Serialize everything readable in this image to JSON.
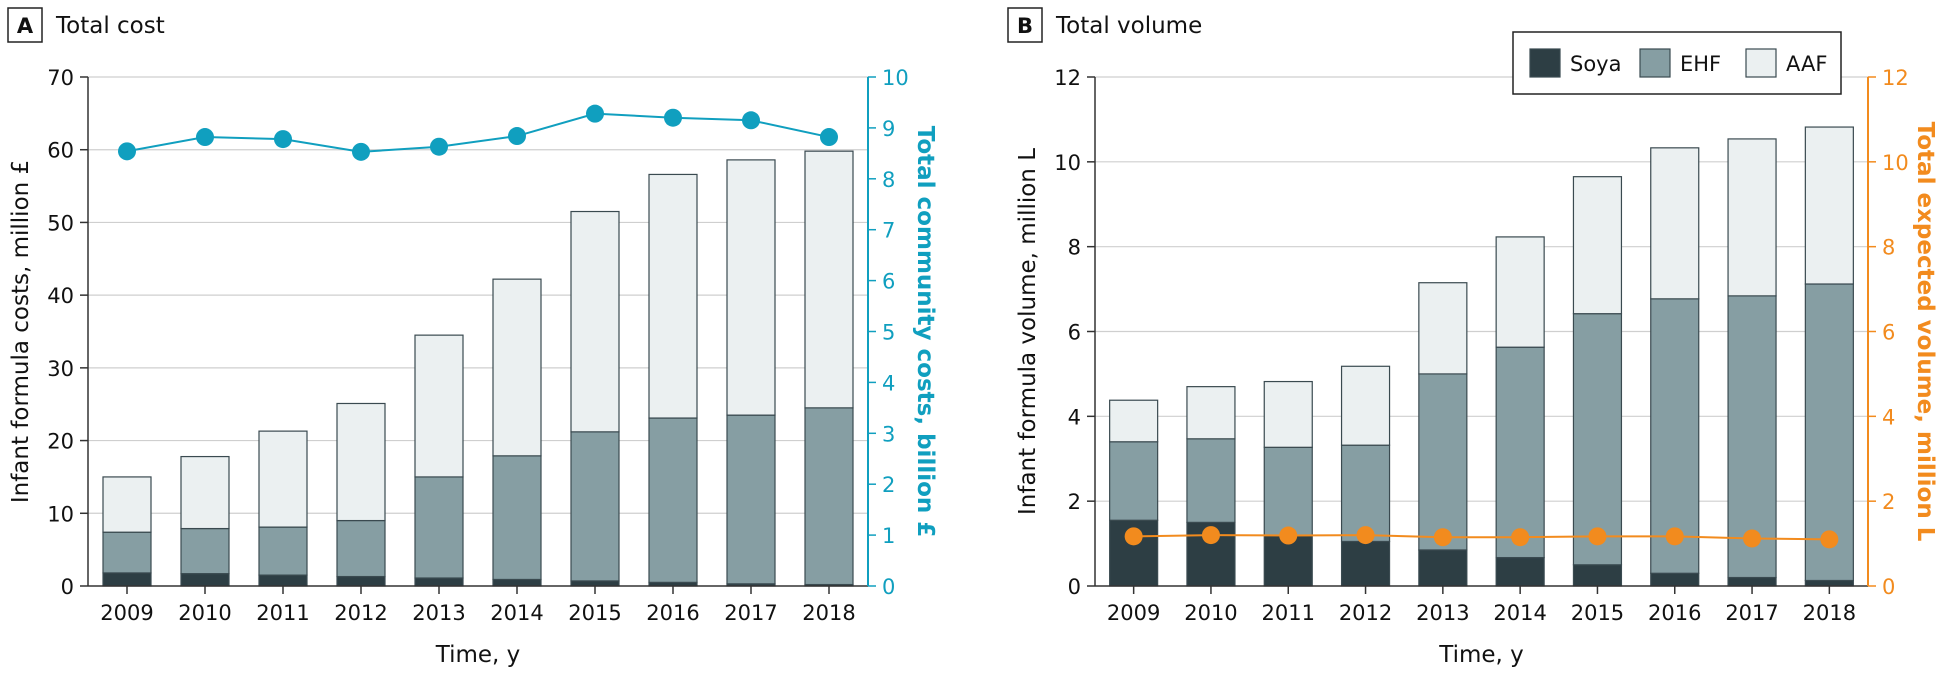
{
  "colors": {
    "soya": "#2d3e44",
    "ehf": "#869ea3",
    "aaf": "#ebf0f1",
    "bar_stroke": "#3a4a50",
    "community": "#109fbf",
    "expected": "#f28b1e",
    "grid": "#cfcfcf",
    "axis": "#333333"
  },
  "legend": {
    "soya": "Soya",
    "ehf": "EHF",
    "aaf": "AAF"
  },
  "chart_data": [
    {
      "panel": "A",
      "title": "Total cost",
      "type": "bar",
      "stacked": true,
      "xlabel": "Time, y",
      "ylabel": "Infant formula costs, million £",
      "y2label": "Total community costs, billion £",
      "ylim": [
        0,
        70
      ],
      "yticks": [
        0,
        10,
        20,
        30,
        40,
        50,
        60,
        70
      ],
      "y2lim": [
        0,
        10
      ],
      "y2ticks": [
        0,
        1,
        2,
        3,
        4,
        5,
        6,
        7,
        8,
        9,
        10
      ],
      "grid": true,
      "categories": [
        "2009",
        "2010",
        "2011",
        "2012",
        "2013",
        "2014",
        "2015",
        "2016",
        "2017",
        "2018"
      ],
      "series": [
        {
          "name": "Soya",
          "values": [
            1.8,
            1.7,
            1.5,
            1.3,
            1.1,
            0.9,
            0.7,
            0.5,
            0.3,
            0.2
          ]
        },
        {
          "name": "EHF",
          "values": [
            5.6,
            6.2,
            6.6,
            7.7,
            13.9,
            17.0,
            20.5,
            22.6,
            23.2,
            24.3
          ]
        },
        {
          "name": "AAF",
          "values": [
            7.6,
            9.9,
            13.2,
            16.1,
            19.5,
            24.3,
            30.3,
            33.5,
            35.1,
            35.3
          ]
        }
      ],
      "line": {
        "axis": "right",
        "values": [
          8.54,
          8.82,
          8.78,
          8.53,
          8.63,
          8.84,
          9.28,
          9.2,
          9.15,
          8.82
        ]
      }
    },
    {
      "panel": "B",
      "title": "Total volume",
      "type": "bar",
      "stacked": true,
      "xlabel": "Time, y",
      "ylabel": "Infant formula volume, million L",
      "y2label": "Total expected volume, million L",
      "ylim": [
        0,
        12
      ],
      "yticks": [
        0,
        2,
        4,
        6,
        8,
        10,
        12
      ],
      "y2lim": [
        0,
        12
      ],
      "y2ticks": [
        0,
        2,
        4,
        6,
        8,
        10,
        12
      ],
      "grid": true,
      "legend_position": "top-right",
      "categories": [
        "2009",
        "2010",
        "2011",
        "2012",
        "2013",
        "2014",
        "2015",
        "2016",
        "2017",
        "2018"
      ],
      "series": [
        {
          "name": "Soya",
          "values": [
            1.55,
            1.5,
            1.2,
            1.05,
            0.85,
            0.67,
            0.5,
            0.3,
            0.2,
            0.13
          ]
        },
        {
          "name": "EHF",
          "values": [
            1.85,
            1.97,
            2.07,
            2.27,
            4.15,
            4.96,
            5.92,
            6.47,
            6.64,
            6.99
          ]
        },
        {
          "name": "AAF",
          "values": [
            0.98,
            1.23,
            1.55,
            1.86,
            2.15,
            2.6,
            3.23,
            3.56,
            3.7,
            3.7
          ]
        }
      ],
      "line": {
        "axis": "right",
        "values": [
          1.17,
          1.2,
          1.19,
          1.2,
          1.15,
          1.15,
          1.17,
          1.17,
          1.12,
          1.1
        ]
      }
    }
  ]
}
